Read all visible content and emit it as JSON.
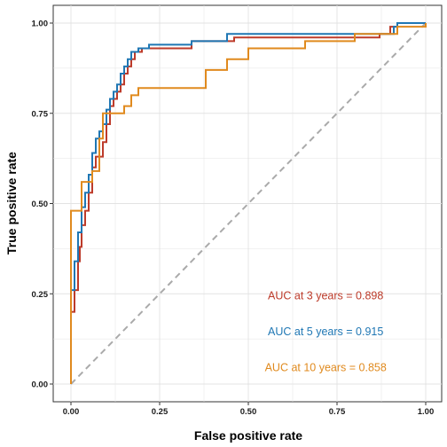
{
  "chart_data": {
    "type": "line",
    "title": "",
    "xlabel": "False positive rate",
    "ylabel": "True positive rate",
    "xlim": [
      0,
      1
    ],
    "ylim": [
      0,
      1
    ],
    "xticks": [
      "0.00",
      "0.25",
      "0.50",
      "0.75",
      "1.00"
    ],
    "yticks": [
      "0.00",
      "0.25",
      "0.50",
      "0.75",
      "1.00"
    ],
    "grid": true,
    "legend": "none",
    "reference_line": {
      "from": [
        0,
        0
      ],
      "to": [
        1,
        1
      ],
      "color": "#aaaaaa",
      "style": "dashed"
    },
    "series": [
      {
        "color": "#bd3b2a",
        "points": [
          [
            0.0,
            0.0
          ],
          [
            0.0,
            0.2
          ],
          [
            0.01,
            0.2
          ],
          [
            0.01,
            0.26
          ],
          [
            0.02,
            0.26
          ],
          [
            0.02,
            0.34
          ],
          [
            0.025,
            0.34
          ],
          [
            0.025,
            0.38
          ],
          [
            0.03,
            0.38
          ],
          [
            0.03,
            0.44
          ],
          [
            0.04,
            0.44
          ],
          [
            0.04,
            0.48
          ],
          [
            0.05,
            0.48
          ],
          [
            0.05,
            0.53
          ],
          [
            0.06,
            0.53
          ],
          [
            0.06,
            0.6
          ],
          [
            0.07,
            0.6
          ],
          [
            0.07,
            0.63
          ],
          [
            0.09,
            0.63
          ],
          [
            0.09,
            0.67
          ],
          [
            0.1,
            0.67
          ],
          [
            0.1,
            0.72
          ],
          [
            0.11,
            0.72
          ],
          [
            0.11,
            0.77
          ],
          [
            0.12,
            0.77
          ],
          [
            0.12,
            0.79
          ],
          [
            0.13,
            0.79
          ],
          [
            0.13,
            0.81
          ],
          [
            0.14,
            0.81
          ],
          [
            0.14,
            0.83
          ],
          [
            0.15,
            0.83
          ],
          [
            0.15,
            0.86
          ],
          [
            0.16,
            0.86
          ],
          [
            0.16,
            0.88
          ],
          [
            0.17,
            0.88
          ],
          [
            0.17,
            0.9
          ],
          [
            0.18,
            0.9
          ],
          [
            0.18,
            0.92
          ],
          [
            0.2,
            0.92
          ],
          [
            0.2,
            0.93
          ],
          [
            0.34,
            0.93
          ],
          [
            0.34,
            0.95
          ],
          [
            0.46,
            0.95
          ],
          [
            0.46,
            0.96
          ],
          [
            0.87,
            0.96
          ],
          [
            0.87,
            0.97
          ],
          [
            0.9,
            0.97
          ],
          [
            0.9,
            0.99
          ],
          [
            0.92,
            0.99
          ],
          [
            0.92,
            1.0
          ],
          [
            1.0,
            1.0
          ]
        ]
      },
      {
        "color": "#1f77b4",
        "points": [
          [
            0.0,
            0.0
          ],
          [
            0.0,
            0.26
          ],
          [
            0.01,
            0.26
          ],
          [
            0.01,
            0.34
          ],
          [
            0.02,
            0.34
          ],
          [
            0.02,
            0.42
          ],
          [
            0.03,
            0.42
          ],
          [
            0.03,
            0.49
          ],
          [
            0.04,
            0.49
          ],
          [
            0.04,
            0.53
          ],
          [
            0.05,
            0.53
          ],
          [
            0.05,
            0.58
          ],
          [
            0.06,
            0.58
          ],
          [
            0.06,
            0.64
          ],
          [
            0.07,
            0.64
          ],
          [
            0.07,
            0.68
          ],
          [
            0.08,
            0.68
          ],
          [
            0.08,
            0.7
          ],
          [
            0.09,
            0.7
          ],
          [
            0.09,
            0.72
          ],
          [
            0.1,
            0.72
          ],
          [
            0.1,
            0.76
          ],
          [
            0.11,
            0.76
          ],
          [
            0.11,
            0.79
          ],
          [
            0.12,
            0.79
          ],
          [
            0.12,
            0.81
          ],
          [
            0.13,
            0.81
          ],
          [
            0.13,
            0.83
          ],
          [
            0.14,
            0.83
          ],
          [
            0.14,
            0.86
          ],
          [
            0.15,
            0.86
          ],
          [
            0.15,
            0.88
          ],
          [
            0.16,
            0.88
          ],
          [
            0.16,
            0.9
          ],
          [
            0.17,
            0.9
          ],
          [
            0.17,
            0.92
          ],
          [
            0.19,
            0.92
          ],
          [
            0.19,
            0.93
          ],
          [
            0.22,
            0.93
          ],
          [
            0.22,
            0.94
          ],
          [
            0.34,
            0.94
          ],
          [
            0.34,
            0.95
          ],
          [
            0.44,
            0.95
          ],
          [
            0.44,
            0.97
          ],
          [
            0.91,
            0.97
          ],
          [
            0.91,
            0.99
          ],
          [
            0.92,
            0.99
          ],
          [
            0.92,
            1.0
          ],
          [
            0.97,
            1.0
          ],
          [
            0.97,
            1.0
          ],
          [
            1.0,
            1.0
          ]
        ]
      },
      {
        "color": "#e08a1e",
        "points": [
          [
            0.0,
            0.0
          ],
          [
            0.0,
            0.48
          ],
          [
            0.03,
            0.48
          ],
          [
            0.03,
            0.56
          ],
          [
            0.06,
            0.56
          ],
          [
            0.06,
            0.59
          ],
          [
            0.08,
            0.59
          ],
          [
            0.08,
            0.68
          ],
          [
            0.09,
            0.68
          ],
          [
            0.09,
            0.75
          ],
          [
            0.15,
            0.75
          ],
          [
            0.15,
            0.77
          ],
          [
            0.17,
            0.77
          ],
          [
            0.17,
            0.8
          ],
          [
            0.19,
            0.8
          ],
          [
            0.19,
            0.82
          ],
          [
            0.38,
            0.82
          ],
          [
            0.38,
            0.87
          ],
          [
            0.44,
            0.87
          ],
          [
            0.44,
            0.9
          ],
          [
            0.5,
            0.9
          ],
          [
            0.5,
            0.93
          ],
          [
            0.66,
            0.93
          ],
          [
            0.66,
            0.95
          ],
          [
            0.8,
            0.95
          ],
          [
            0.8,
            0.97
          ],
          [
            0.92,
            0.97
          ],
          [
            0.92,
            0.99
          ],
          [
            1.0,
            0.99
          ],
          [
            1.0,
            1.0
          ]
        ]
      }
    ],
    "annotations": [
      {
        "text": "AUC at 3 years = 0.898",
        "color": "#bd3b2a",
        "x": 0.718,
        "y": 0.244
      },
      {
        "text": "AUC at 5 years = 0.915",
        "color": "#1f77b4",
        "x": 0.718,
        "y": 0.145
      },
      {
        "text": "AUC at 10 years = 0.858",
        "color": "#e08a1e",
        "x": 0.718,
        "y": 0.046
      }
    ]
  }
}
